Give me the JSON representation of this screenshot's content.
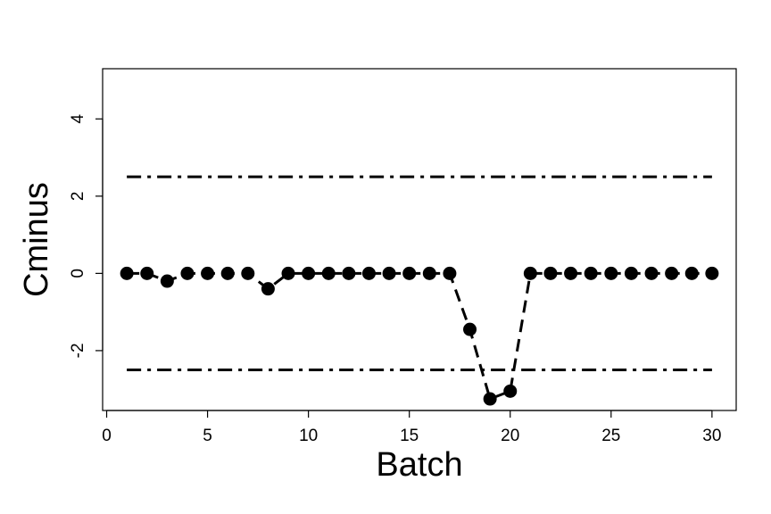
{
  "chart_data": {
    "type": "line",
    "xlabel": "Batch",
    "ylabel": "Cminus",
    "xlim": [
      -0.2,
      31.2
    ],
    "ylim": [
      -3.55,
      5.3
    ],
    "xticks": [
      0,
      5,
      10,
      15,
      20,
      25,
      30
    ],
    "yticks": [
      -2,
      0,
      2,
      4
    ],
    "grid": false,
    "legend": "none",
    "series": [
      {
        "line_style": "dashed",
        "marker": "filled-circle",
        "color": "#000000",
        "x": [
          1,
          2,
          3,
          4,
          5,
          6,
          7,
          8,
          9,
          10,
          11,
          12,
          13,
          14,
          15,
          16,
          17,
          18,
          19,
          20,
          21,
          22,
          23,
          24,
          25,
          26,
          27,
          28,
          29,
          30
        ],
        "y": [
          0,
          0,
          -0.2,
          0,
          0,
          0,
          0,
          -0.4,
          0,
          0,
          0,
          0,
          0,
          0,
          0,
          0,
          0,
          -1.45,
          -3.25,
          -3.05,
          0,
          0,
          0,
          0,
          0,
          0,
          0,
          0,
          0,
          0
        ]
      }
    ],
    "reference_lines": [
      {
        "y": 2.5,
        "x_range": [
          1,
          30
        ],
        "line_style": "dash-dot",
        "color": "#000000"
      },
      {
        "y": -2.5,
        "x_range": [
          1,
          30
        ],
        "line_style": "dash-dot",
        "color": "#000000"
      }
    ]
  }
}
